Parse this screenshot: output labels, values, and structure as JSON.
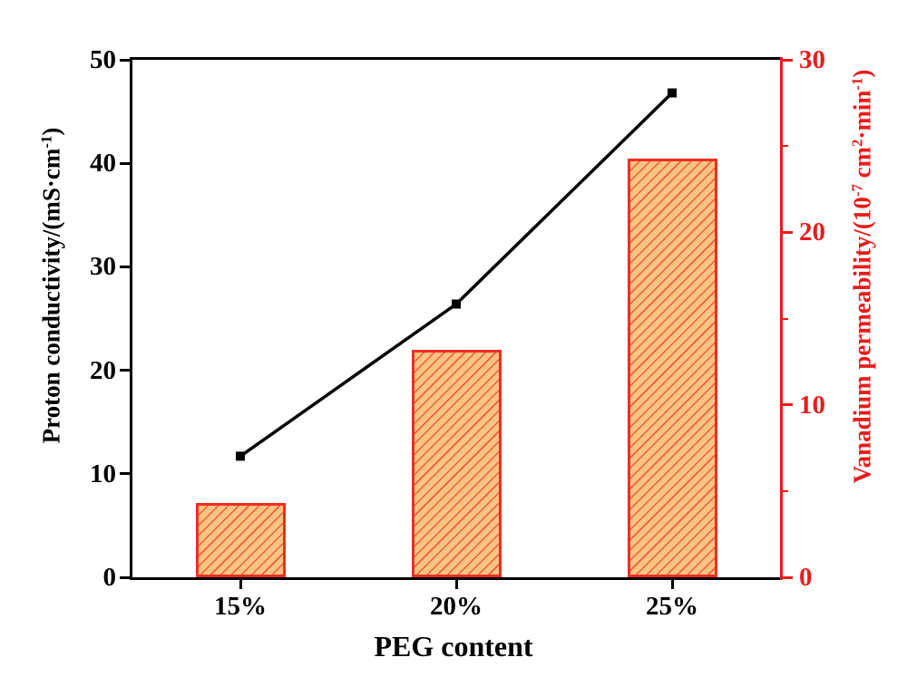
{
  "chart_data": {
    "type": "dual-axis bar+line",
    "title": "",
    "categories": [
      "15%",
      "20%",
      "25%"
    ],
    "x_axis": {
      "title": "PEG content"
    },
    "left_axis": {
      "title": "Proton conductivity/(mS·cm^-1)",
      "title_parts": [
        {
          "text": "Proton conductivity/(mS·cm"
        },
        {
          "text": "-1",
          "sup": true
        },
        {
          "text": ")"
        }
      ],
      "range": [
        0,
        50
      ],
      "ticks": [
        0,
        10,
        20,
        30,
        40,
        50
      ],
      "color": "#000000"
    },
    "right_axis": {
      "title": "Vanadium permeability/(10^-7 cm^2·min^-1)",
      "title_parts": [
        {
          "text": "Vanadium permeability/(10"
        },
        {
          "text": "-7",
          "sup": true
        },
        {
          "text": " cm"
        },
        {
          "text": "2",
          "sup": true
        },
        {
          "text": "·min"
        },
        {
          "text": "-1",
          "sup": true
        },
        {
          "text": ")"
        }
      ],
      "range": [
        0,
        30
      ],
      "ticks": [
        0,
        10,
        20,
        30
      ],
      "minor_ticks": [
        5,
        15,
        25
      ],
      "color": "#e81c1c"
    },
    "series": [
      {
        "name": "Proton conductivity",
        "type": "line",
        "axis": "left",
        "values": [
          11.7,
          26.4,
          46.8
        ],
        "color": "#000000",
        "marker": "filled-square"
      },
      {
        "name": "Vanadium permeability",
        "type": "bar",
        "axis": "right",
        "values": [
          4.3,
          13.2,
          24.3
        ],
        "fill_color": "#fcc47e",
        "hatch_color": "#ec5c44",
        "hatch_pattern": "diagonal-forward",
        "border_color": "#ee2e21"
      }
    ],
    "grid": false,
    "legend": false
  }
}
